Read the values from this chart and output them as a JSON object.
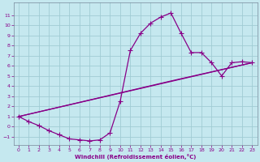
{
  "title": "",
  "xlabel": "Windchill (Refroidissement éolien,°C)",
  "bg_color": "#c5e8ef",
  "line_color": "#880088",
  "grid_color": "#a0ccd4",
  "xlim": [
    -0.5,
    23.5
  ],
  "ylim": [
    -1.8,
    12.2
  ],
  "xticks": [
    0,
    1,
    2,
    3,
    4,
    5,
    6,
    7,
    8,
    9,
    10,
    11,
    12,
    13,
    14,
    15,
    16,
    17,
    18,
    19,
    20,
    21,
    22,
    23
  ],
  "yticks": [
    -1,
    0,
    1,
    2,
    3,
    4,
    5,
    6,
    7,
    8,
    9,
    10,
    11
  ],
  "curve_x": [
    0,
    1,
    2,
    3,
    4,
    5,
    6,
    7,
    8,
    9,
    10,
    11,
    12,
    13,
    14,
    15,
    16,
    17,
    18,
    19,
    20,
    21,
    22,
    23
  ],
  "curve_y": [
    1.0,
    0.5,
    0.1,
    -0.4,
    -0.8,
    -1.2,
    -1.3,
    -1.4,
    -1.3,
    -0.6,
    2.5,
    7.5,
    9.2,
    10.2,
    10.8,
    11.2,
    9.2,
    7.3,
    7.3,
    6.3,
    5.0,
    6.3,
    6.4,
    6.3
  ],
  "line2_x": [
    0,
    23
  ],
  "line2_y": [
    1.0,
    6.3
  ],
  "line3_x": [
    0,
    15,
    23
  ],
  "line3_y": [
    1.0,
    4.5,
    6.3
  ],
  "marker_size": 4,
  "line_width": 0.9,
  "tick_fontsize": 4.5,
  "xlabel_fontsize": 5.0
}
